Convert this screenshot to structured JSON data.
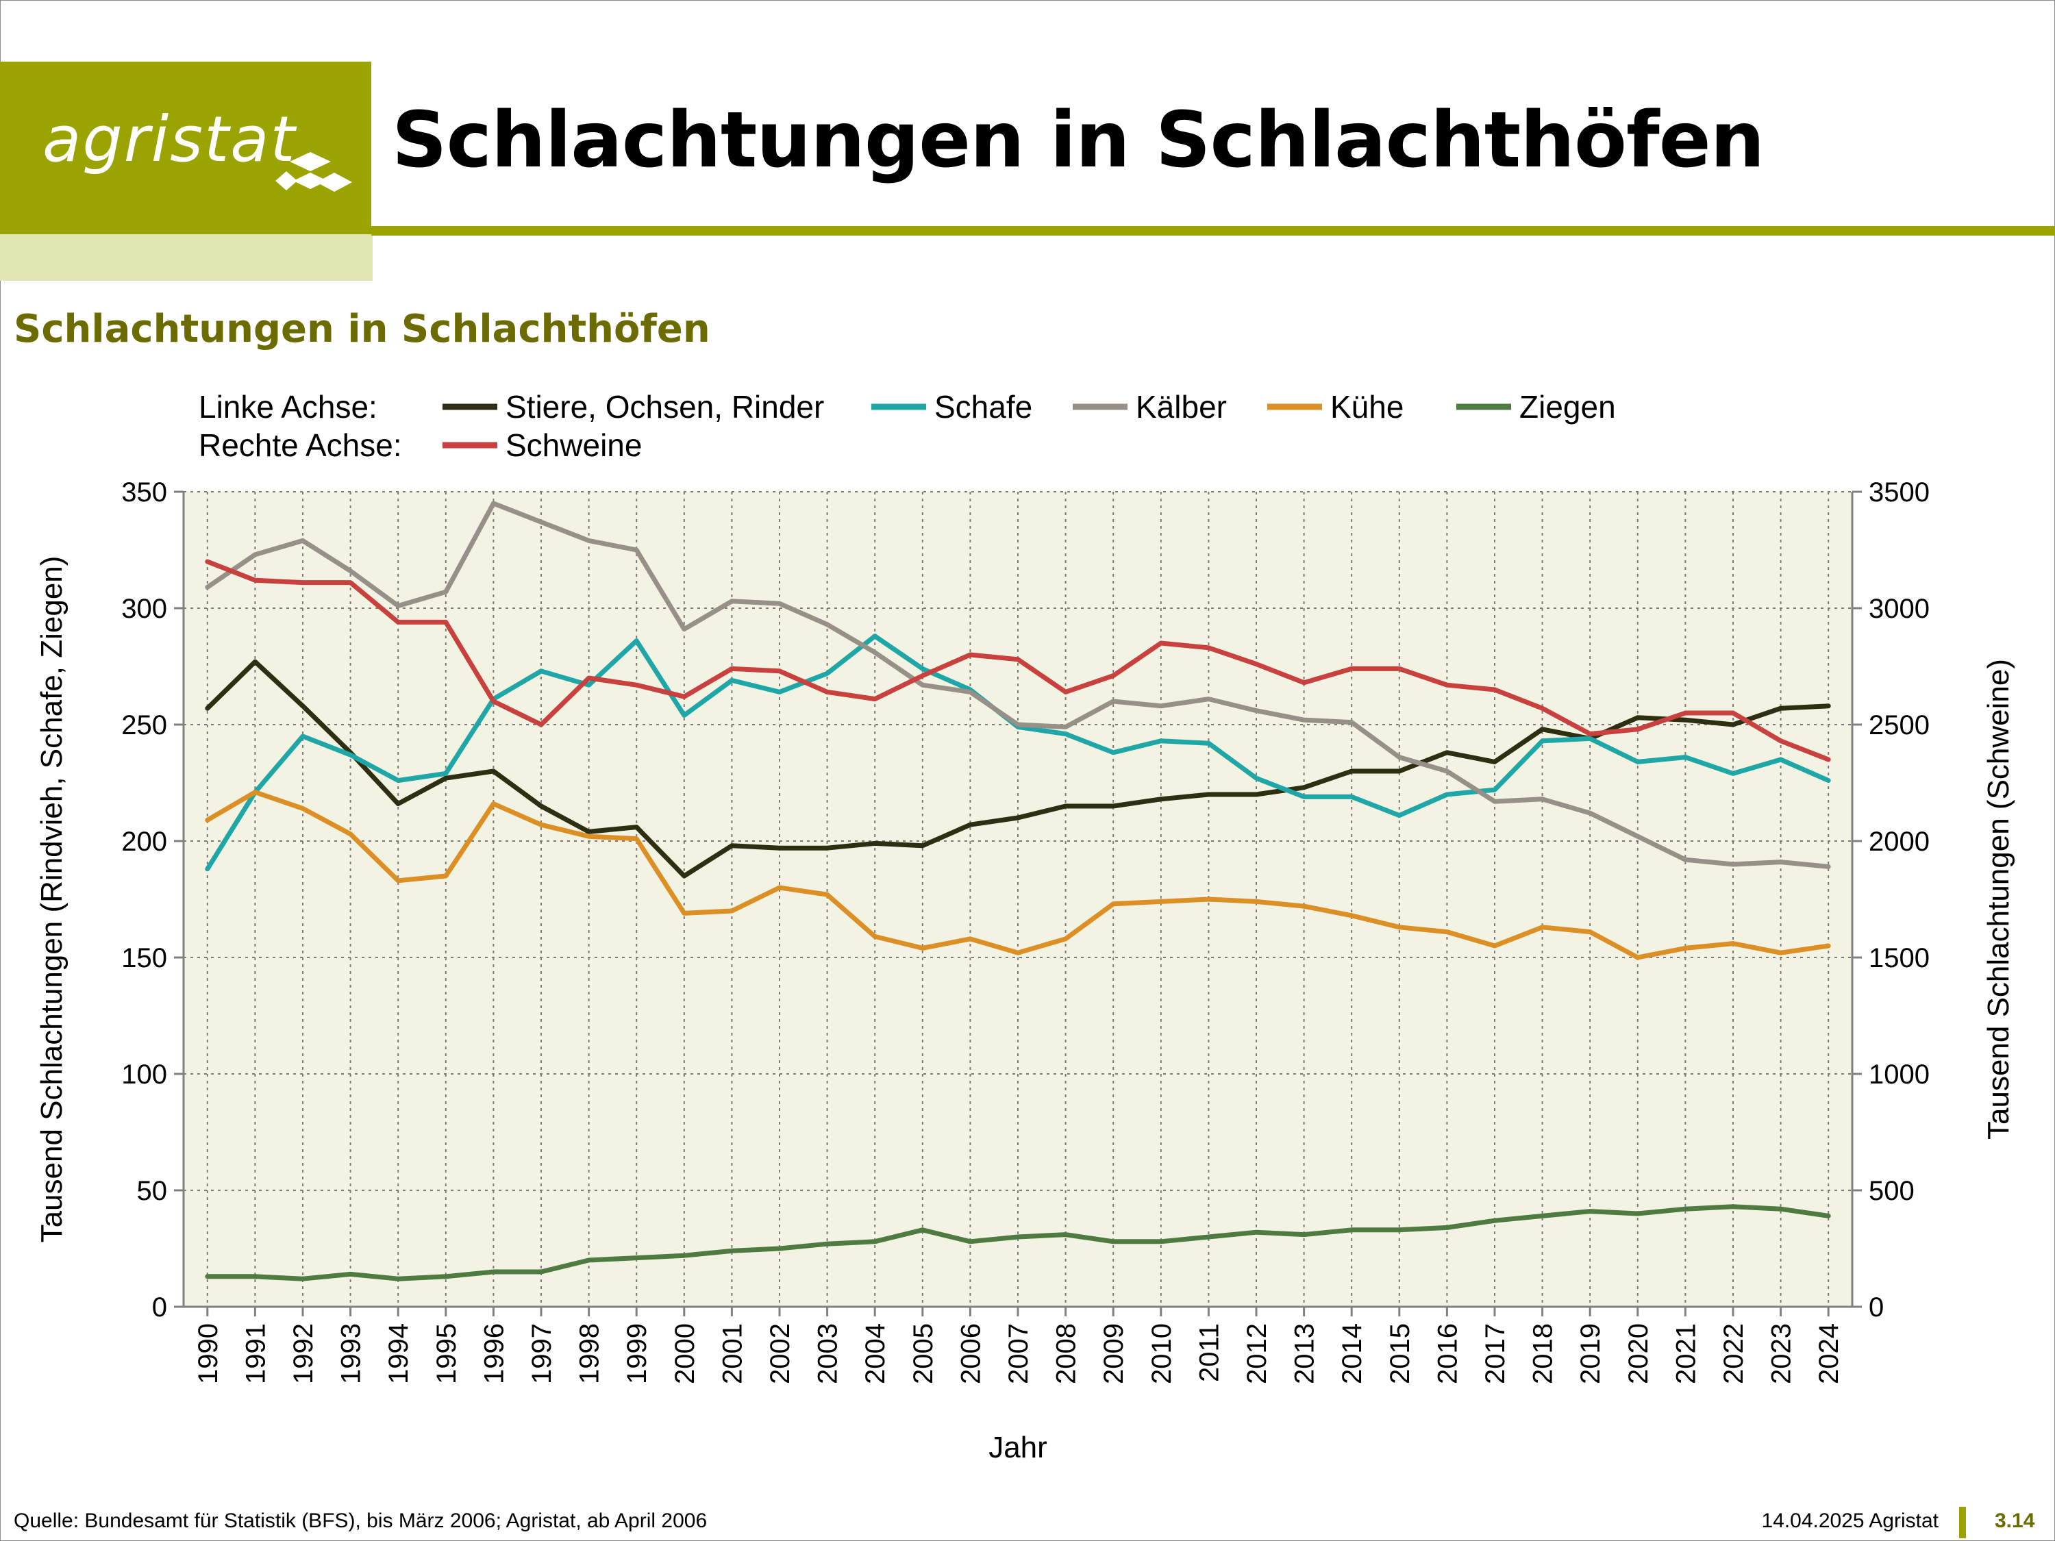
{
  "header": {
    "logo_text": "agristat",
    "title": "Schlachtungen in Schlachthöfen"
  },
  "colors": {
    "brand": "#9aa300",
    "brand_light": "#e2e6b3",
    "subtitle": "#6b6b00",
    "plot_bg": "#f2f3e2"
  },
  "chart_data": {
    "type": "line",
    "title": "Schlachtungen in Schlachthöfen",
    "xlabel": "Jahr",
    "ylabel_left": "Tausend Schlachtungen (Rindvieh, Schafe, Ziegen)",
    "ylabel_right": "Tausend Schlachtungen (Schweine)",
    "ylim_left": [
      0,
      350
    ],
    "ylim_right": [
      0,
      3500
    ],
    "yticks_left": [
      0,
      50,
      100,
      150,
      200,
      250,
      300,
      350
    ],
    "yticks_right": [
      0,
      500,
      1000,
      1500,
      2000,
      2500,
      3000,
      3500
    ],
    "grid": true,
    "legend_placement": "top",
    "legend_left_label": "Linke Achse:",
    "legend_right_label": "Rechte Achse:",
    "x": [
      "1990",
      "1991",
      "1992",
      "1993",
      "1994",
      "1995",
      "1996",
      "1997",
      "1998",
      "1999",
      "2000",
      "2001",
      "2002",
      "2003",
      "2004",
      "2005",
      "2006",
      "2007",
      "2008",
      "2009",
      "2010",
      "2011",
      "2012",
      "2013",
      "2014",
      "2015",
      "2016",
      "2017",
      "2018",
      "2019",
      "2020",
      "2021",
      "2022",
      "2023",
      "2024"
    ],
    "series": [
      {
        "name": "Stiere, Ochsen, Rinder",
        "axis": "left",
        "color": "#2e2e12",
        "values": [
          257,
          277,
          258,
          238,
          216,
          227,
          230,
          215,
          204,
          206,
          185,
          198,
          197,
          197,
          199,
          198,
          207,
          210,
          215,
          215,
          218,
          220,
          220,
          223,
          230,
          230,
          238,
          234,
          248,
          244,
          253,
          252,
          250,
          257,
          258
        ]
      },
      {
        "name": "Schafe",
        "axis": "left",
        "color": "#1fa6a6",
        "values": [
          188,
          221,
          245,
          237,
          226,
          229,
          261,
          273,
          267,
          286,
          254,
          269,
          264,
          272,
          288,
          274,
          265,
          249,
          246,
          238,
          243,
          242,
          227,
          219,
          219,
          211,
          220,
          222,
          243,
          244,
          234,
          236,
          229,
          235,
          226
        ]
      },
      {
        "name": "Kälber",
        "axis": "left",
        "color": "#979089",
        "values": [
          309,
          323,
          329,
          316,
          301,
          307,
          345,
          337,
          329,
          325,
          291,
          303,
          302,
          293,
          281,
          267,
          264,
          250,
          249,
          260,
          258,
          261,
          256,
          252,
          251,
          236,
          230,
          217,
          218,
          212,
          202,
          192,
          190,
          191,
          189
        ]
      },
      {
        "name": "Kühe",
        "axis": "left",
        "color": "#dc8f24",
        "values": [
          209,
          221,
          214,
          203,
          183,
          185,
          216,
          207,
          202,
          201,
          169,
          170,
          180,
          177,
          159,
          154,
          158,
          152,
          158,
          173,
          174,
          175,
          174,
          172,
          168,
          163,
          161,
          155,
          163,
          161,
          150,
          154,
          156,
          152,
          155
        ]
      },
      {
        "name": "Ziegen",
        "axis": "left",
        "color": "#4f7a42",
        "values": [
          13,
          13,
          12,
          14,
          12,
          13,
          15,
          15,
          20,
          21,
          22,
          24,
          25,
          27,
          28,
          33,
          28,
          30,
          31,
          28,
          28,
          30,
          32,
          31,
          33,
          33,
          34,
          37,
          39,
          41,
          40,
          42,
          43,
          42,
          39
        ]
      },
      {
        "name": "Schweine",
        "axis": "right",
        "color": "#c9413e",
        "values": [
          3200,
          3120,
          3110,
          3110,
          2940,
          2940,
          2600,
          2500,
          2700,
          2670,
          2620,
          2740,
          2730,
          2640,
          2610,
          2710,
          2800,
          2780,
          2640,
          2710,
          2850,
          2830,
          2760,
          2680,
          2740,
          2740,
          2670,
          2650,
          2570,
          2460,
          2480,
          2550,
          2550,
          2430,
          2350
        ]
      }
    ]
  },
  "footer": {
    "source": "Quelle: Bundesamt für Statistik (BFS), bis März 2006; Agristat, ab April 2006",
    "date": "14.04.2025 Agristat",
    "page": "3.14"
  }
}
